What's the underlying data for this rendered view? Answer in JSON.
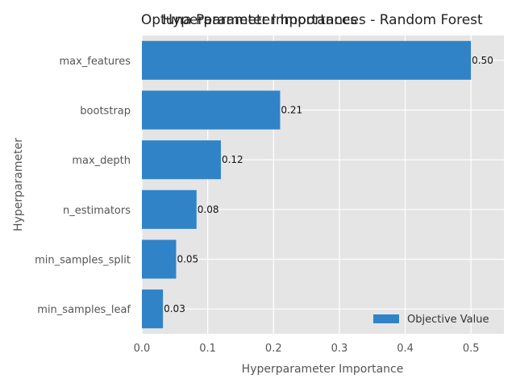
{
  "chart_data": {
    "type": "bar",
    "orientation": "horizontal",
    "titles": [
      "Optuna Parameter Importances",
      "Hyperparameter Importances - Random Forest"
    ],
    "xlabel": "Hyperparameter Importance",
    "ylabel": "Hyperparameter",
    "xlim": [
      0,
      0.55
    ],
    "xticks": [
      "0.0",
      "0.1",
      "0.2",
      "0.3",
      "0.4",
      "0.5"
    ],
    "categories": [
      "max_features",
      "bootstrap",
      "max_depth",
      "n_estimators",
      "min_samples_split",
      "min_samples_leaf"
    ],
    "series": [
      {
        "name": "Objective Value",
        "values": [
          0.5,
          0.21,
          0.12,
          0.083,
          0.052,
          0.032
        ],
        "labels": [
          "0.50",
          "0.21",
          "0.12",
          "0.08",
          "0.05",
          "0.03"
        ],
        "color": "#3183c8"
      }
    ],
    "grid": true,
    "background": "#e5e5e5",
    "legend_position": "lower-right"
  }
}
